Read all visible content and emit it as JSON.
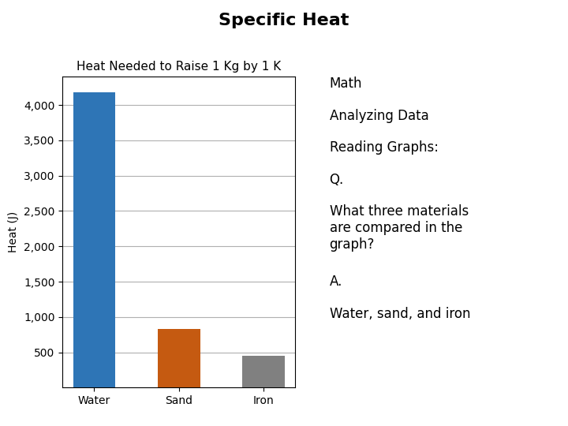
{
  "chart_data": {
    "type": "bar",
    "title": "Specific Heat",
    "subtitle": "Heat Needed to Raise 1 Kg by 1 K",
    "categories": [
      "Water",
      "Sand",
      "Iron"
    ],
    "values": [
      4181,
      830,
      450
    ],
    "colors": [
      "#2E75B6",
      "#C55A11",
      "#808080"
    ],
    "ylabel": "Heat (J)",
    "ylim": [
      0,
      4400
    ],
    "yticks": [
      500,
      {
        "value": 1000,
        "label": "1,000"
      },
      {
        "value": 1500,
        "label": "1,500"
      },
      {
        "value": 2000,
        "label": "2,000"
      },
      {
        "value": 2500,
        "label": "2,500"
      },
      {
        "value": 3000,
        "label": "3,000"
      },
      {
        "value": 3500,
        "label": "3,500"
      },
      {
        "value": 4000,
        "label": "4,000"
      }
    ],
    "grid": true,
    "annotations": [
      "Math",
      "Analyzing Data",
      "Reading Graphs:",
      "Q.",
      "What three materials\nare compared in the\ngraph?",
      "A.",
      "Water, sand, and iron"
    ]
  }
}
